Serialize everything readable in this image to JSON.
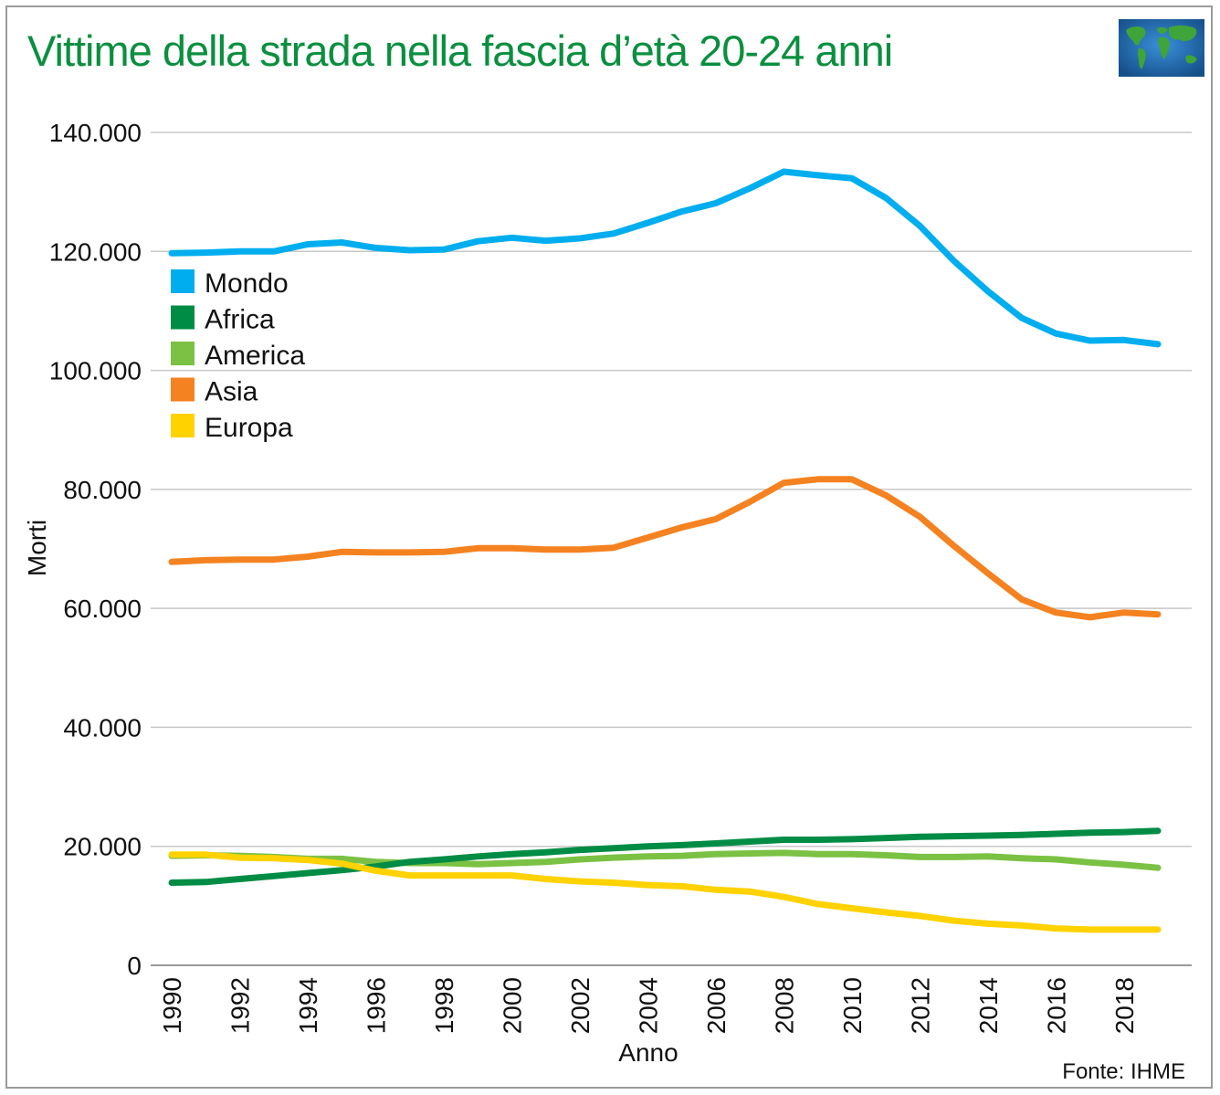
{
  "title": "Vittime della strada nella fascia d’età 20-24 anni",
  "source": "Fonte: IHME",
  "logo_icon": "world-map-icon",
  "chart_data": {
    "type": "line",
    "title": "Vittime della strada nella fascia d’età 20-24 anni",
    "xlabel": "Anno",
    "ylabel": "Morti",
    "xlim": [
      1990,
      2019
    ],
    "ylim": [
      0,
      140000
    ],
    "grid": true,
    "legend_position": "top-left",
    "x_tick_labels": [
      "1990",
      "1992",
      "1994",
      "1996",
      "1998",
      "2000",
      "2002",
      "2004",
      "2006",
      "2008",
      "2010",
      "2012",
      "2014",
      "2016",
      "2018"
    ],
    "y_tick_labels": [
      "0",
      "20.000",
      "40.000",
      "60.000",
      "80.000",
      "100.000",
      "120.000",
      "140.000"
    ],
    "y_tick_values": [
      0,
      20000,
      40000,
      60000,
      80000,
      100000,
      120000,
      140000
    ],
    "x": [
      1990,
      1991,
      1992,
      1993,
      1994,
      1995,
      1996,
      1997,
      1998,
      1999,
      2000,
      2001,
      2002,
      2003,
      2004,
      2005,
      2006,
      2007,
      2008,
      2009,
      2010,
      2011,
      2012,
      2013,
      2014,
      2015,
      2016,
      2017,
      2018,
      2019
    ],
    "series": [
      {
        "name": "Mondo",
        "color": "#00aeef",
        "values": [
          119700,
          119800,
          120000,
          120000,
          121200,
          121500,
          120600,
          120200,
          120300,
          121700,
          122300,
          121800,
          122200,
          123000,
          124800,
          126700,
          128100,
          130600,
          133400,
          132800,
          132300,
          129000,
          124300,
          118400,
          113300,
          108800,
          106200,
          105000,
          105100,
          104400
        ]
      },
      {
        "name": "Africa",
        "color": "#008c45",
        "values": [
          13900,
          14000,
          14500,
          15000,
          15500,
          16000,
          16600,
          17400,
          17800,
          18300,
          18700,
          19000,
          19400,
          19700,
          20000,
          20200,
          20500,
          20800,
          21100,
          21100,
          21200,
          21400,
          21600,
          21700,
          21800,
          21900,
          22100,
          22300,
          22400,
          22600
        ]
      },
      {
        "name": "America",
        "color": "#7bc143",
        "values": [
          18400,
          18500,
          18400,
          18200,
          17900,
          17900,
          17400,
          17200,
          17200,
          17000,
          17200,
          17400,
          17800,
          18100,
          18300,
          18400,
          18700,
          18800,
          18900,
          18700,
          18700,
          18500,
          18200,
          18200,
          18300,
          18000,
          17800,
          17300,
          16900,
          16400
        ]
      },
      {
        "name": "Asia",
        "color": "#f58220",
        "values": [
          67800,
          68100,
          68200,
          68200,
          68700,
          69500,
          69400,
          69400,
          69500,
          70100,
          70100,
          69900,
          69900,
          70200,
          71900,
          73600,
          75000,
          77900,
          81100,
          81700,
          81700,
          79000,
          75400,
          70500,
          65900,
          61500,
          59300,
          58500,
          59300,
          59000
        ]
      },
      {
        "name": "Europa",
        "color": "#ffd200",
        "values": [
          18600,
          18600,
          18100,
          18000,
          17700,
          17100,
          15900,
          15100,
          15100,
          15100,
          15100,
          14500,
          14100,
          13900,
          13500,
          13300,
          12700,
          12400,
          11500,
          10300,
          9600,
          8900,
          8300,
          7500,
          7000,
          6700,
          6200,
          6000,
          6000,
          6000
        ]
      }
    ]
  }
}
